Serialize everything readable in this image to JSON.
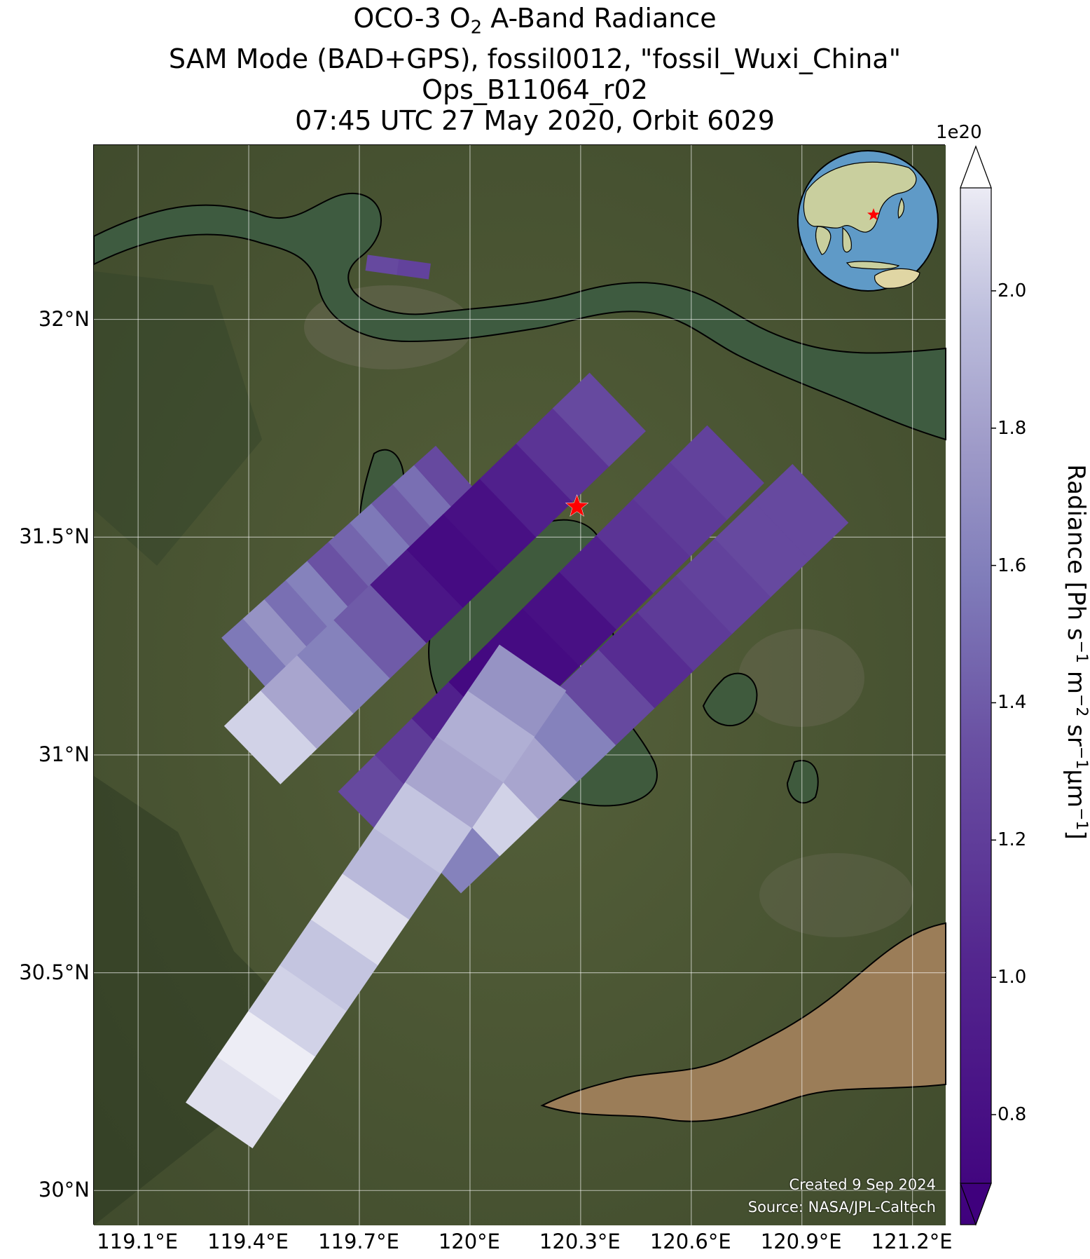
{
  "title": {
    "line1_pre": "OCO-3 O",
    "line1_sub": "2",
    "line1_post": " A-Band Radiance",
    "line2": "SAM Mode (BAD+GPS), fossil0012, \"fossil_Wuxi_China\"",
    "line3": "Ops_B11064_r02",
    "line4": "07:45 UTC 27 May 2020, Orbit 6029"
  },
  "map": {
    "lon_range": [
      118.98,
      121.29
    ],
    "lat_range": [
      29.92,
      32.4
    ],
    "lat_ticks": [
      {
        "value": 32.0,
        "label": "32°N"
      },
      {
        "value": 31.5,
        "label": "31.5°N"
      },
      {
        "value": 31.0,
        "label": "31°N"
      },
      {
        "value": 30.5,
        "label": "30.5°N"
      },
      {
        "value": 30.0,
        "label": "30°N"
      }
    ],
    "lon_ticks": [
      {
        "value": 119.1,
        "label": "119.1°E"
      },
      {
        "value": 119.4,
        "label": "119.4°E"
      },
      {
        "value": 119.7,
        "label": "119.7°E"
      },
      {
        "value": 120.0,
        "label": "120°E"
      },
      {
        "value": 120.3,
        "label": "120.3°E"
      },
      {
        "value": 120.6,
        "label": "120.6°E"
      },
      {
        "value": 120.9,
        "label": "120.9°E"
      },
      {
        "value": 121.2,
        "label": "121.2°E"
      }
    ],
    "target": {
      "name": "fossil_Wuxi_China",
      "lon": 120.29,
      "lat": 31.57,
      "marker": "red-star"
    },
    "background": "satellite imagery",
    "colors": {
      "land": "#4a5533",
      "water": "#3f5a3d",
      "estuary": "#9b7d58",
      "grid": "#ffffff",
      "coast": "#000000"
    }
  },
  "credit": {
    "created": "Created 9 Sep 2024",
    "source": "Source: NASA/JPL-Caltech"
  },
  "colorbar": {
    "label_base": "Radiance [Ph s",
    "label_parts": [
      "Radiance [Ph s",
      "−1",
      " m",
      "−2",
      " sr",
      "−1",
      "μm",
      "−1",
      "]"
    ],
    "scale": "1e20",
    "range": [
      0.7,
      2.15
    ],
    "ticks": [
      {
        "value": 0.8,
        "label": "0.8"
      },
      {
        "value": 1.0,
        "label": "1.0"
      },
      {
        "value": 1.2,
        "label": "1.2"
      },
      {
        "value": 1.4,
        "label": "1.4"
      },
      {
        "value": 1.6,
        "label": "1.6"
      },
      {
        "value": 1.8,
        "label": "1.8"
      },
      {
        "value": 2.0,
        "label": "2.0"
      }
    ],
    "colormap": "Purples_r",
    "extend": "both"
  },
  "chart_data": {
    "type": "heatmap",
    "title": "OCO-3 O2 A-Band Radiance",
    "xlabel": "",
    "ylabel": "",
    "value_units": "1e20 Ph s-1 m-2 sr-1 μm-1",
    "swaths": [
      {
        "lon_start": 119.4,
        "lat_start": 31.2,
        "lon_end": 119.98,
        "lat_end": 31.64,
        "values": [
          1.55,
          1.7,
          1.5,
          1.6,
          1.35,
          1.45,
          1.55,
          1.4,
          1.5,
          1.3
        ]
      },
      {
        "lon_start": 119.41,
        "lat_start": 31.0,
        "lon_end": 120.4,
        "lat_end": 31.81,
        "values": [
          2.0,
          1.8,
          1.6,
          1.4,
          0.9,
          0.8,
          0.85,
          1.0,
          1.15,
          1.3
        ]
      },
      {
        "lon_start": 119.72,
        "lat_start": 30.85,
        "lon_end": 120.72,
        "lat_end": 31.69,
        "values": [
          1.3,
          1.2,
          1.0,
          0.78,
          0.8,
          0.85,
          1.0,
          1.15,
          1.2,
          1.25
        ]
      },
      {
        "lon_start": 119.9,
        "lat_start": 30.75,
        "lon_end": 120.95,
        "lat_end": 31.6,
        "values": [
          1.6,
          2.0,
          1.8,
          1.6,
          1.3,
          1.1,
          1.2,
          1.25,
          1.3,
          1.3
        ]
      },
      {
        "lon_start": 119.32,
        "lat_start": 30.15,
        "lon_end": 120.17,
        "lat_end": 31.2,
        "values": [
          2.05,
          2.1,
          2.0,
          1.95,
          2.05,
          1.9,
          1.95,
          1.8,
          1.85,
          1.7
        ]
      },
      {
        "lon_start": 119.72,
        "lat_start": 32.13,
        "lon_end": 119.89,
        "lat_end": 32.11,
        "values": [
          1.3,
          1.25
        ]
      }
    ]
  }
}
